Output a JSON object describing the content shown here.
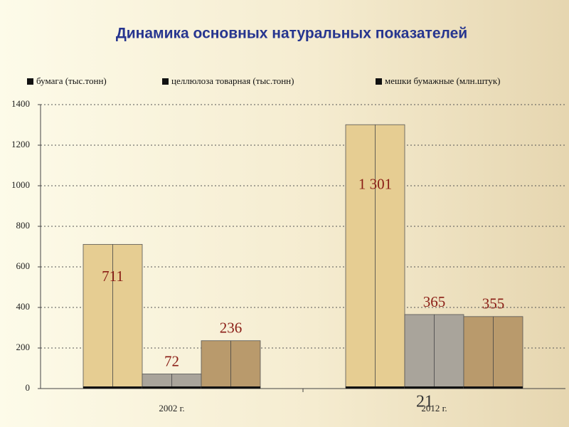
{
  "chart_data": {
    "type": "bar",
    "title": "Динамика основных натуральных показателей",
    "categories": [
      "2002 г.",
      "2012 г."
    ],
    "series": [
      {
        "name": "бумага (тыс.тонн)",
        "color": "#e6cd92",
        "values": [
          711,
          1301
        ],
        "value_labels": [
          "711",
          "1 301"
        ]
      },
      {
        "name": "целлюлоза товарная (тыс.тонн)",
        "color": "#a9a49b",
        "values": [
          72,
          365
        ]
      },
      {
        "name": "мешки бумажные (млн.штук)",
        "color": "#b99a6c",
        "values": [
          236,
          355
        ]
      }
    ],
    "ylim": [
      0,
      1400
    ],
    "yticks": [
      0,
      200,
      400,
      600,
      800,
      1000,
      1200,
      1400
    ],
    "grid": true,
    "legend": "top"
  },
  "slide_number": "21"
}
